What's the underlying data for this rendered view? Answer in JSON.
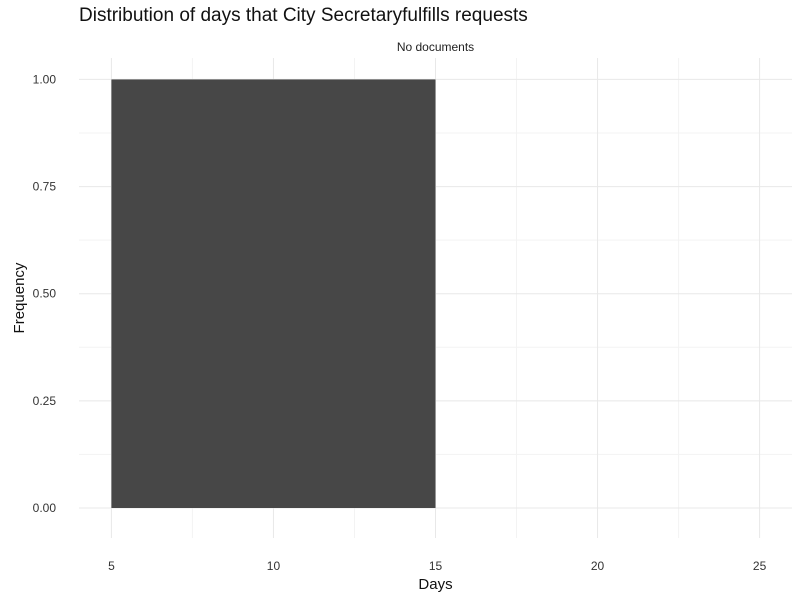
{
  "chart_data": {
    "type": "bar",
    "title": "Distribution of days that City Secretaryfulfills requests",
    "facet_label": "No documents",
    "xlabel": "Days",
    "ylabel": "Frequency",
    "xlim": [
      4,
      26
    ],
    "ylim": [
      -0.07,
      1.05
    ],
    "x_ticks": [
      5,
      10,
      15,
      20,
      25
    ],
    "x_tick_labels": [
      "5",
      "10",
      "15",
      "20",
      "25"
    ],
    "y_ticks": [
      0,
      0.25,
      0.5,
      0.75,
      1.0
    ],
    "y_tick_labels": [
      "0.00",
      "0.25",
      "0.50",
      "0.75",
      "1.00"
    ],
    "bins": [
      {
        "x_start": 5,
        "x_end": 15,
        "value": 1.0
      }
    ],
    "bar_color": "#474747",
    "grid": true
  }
}
